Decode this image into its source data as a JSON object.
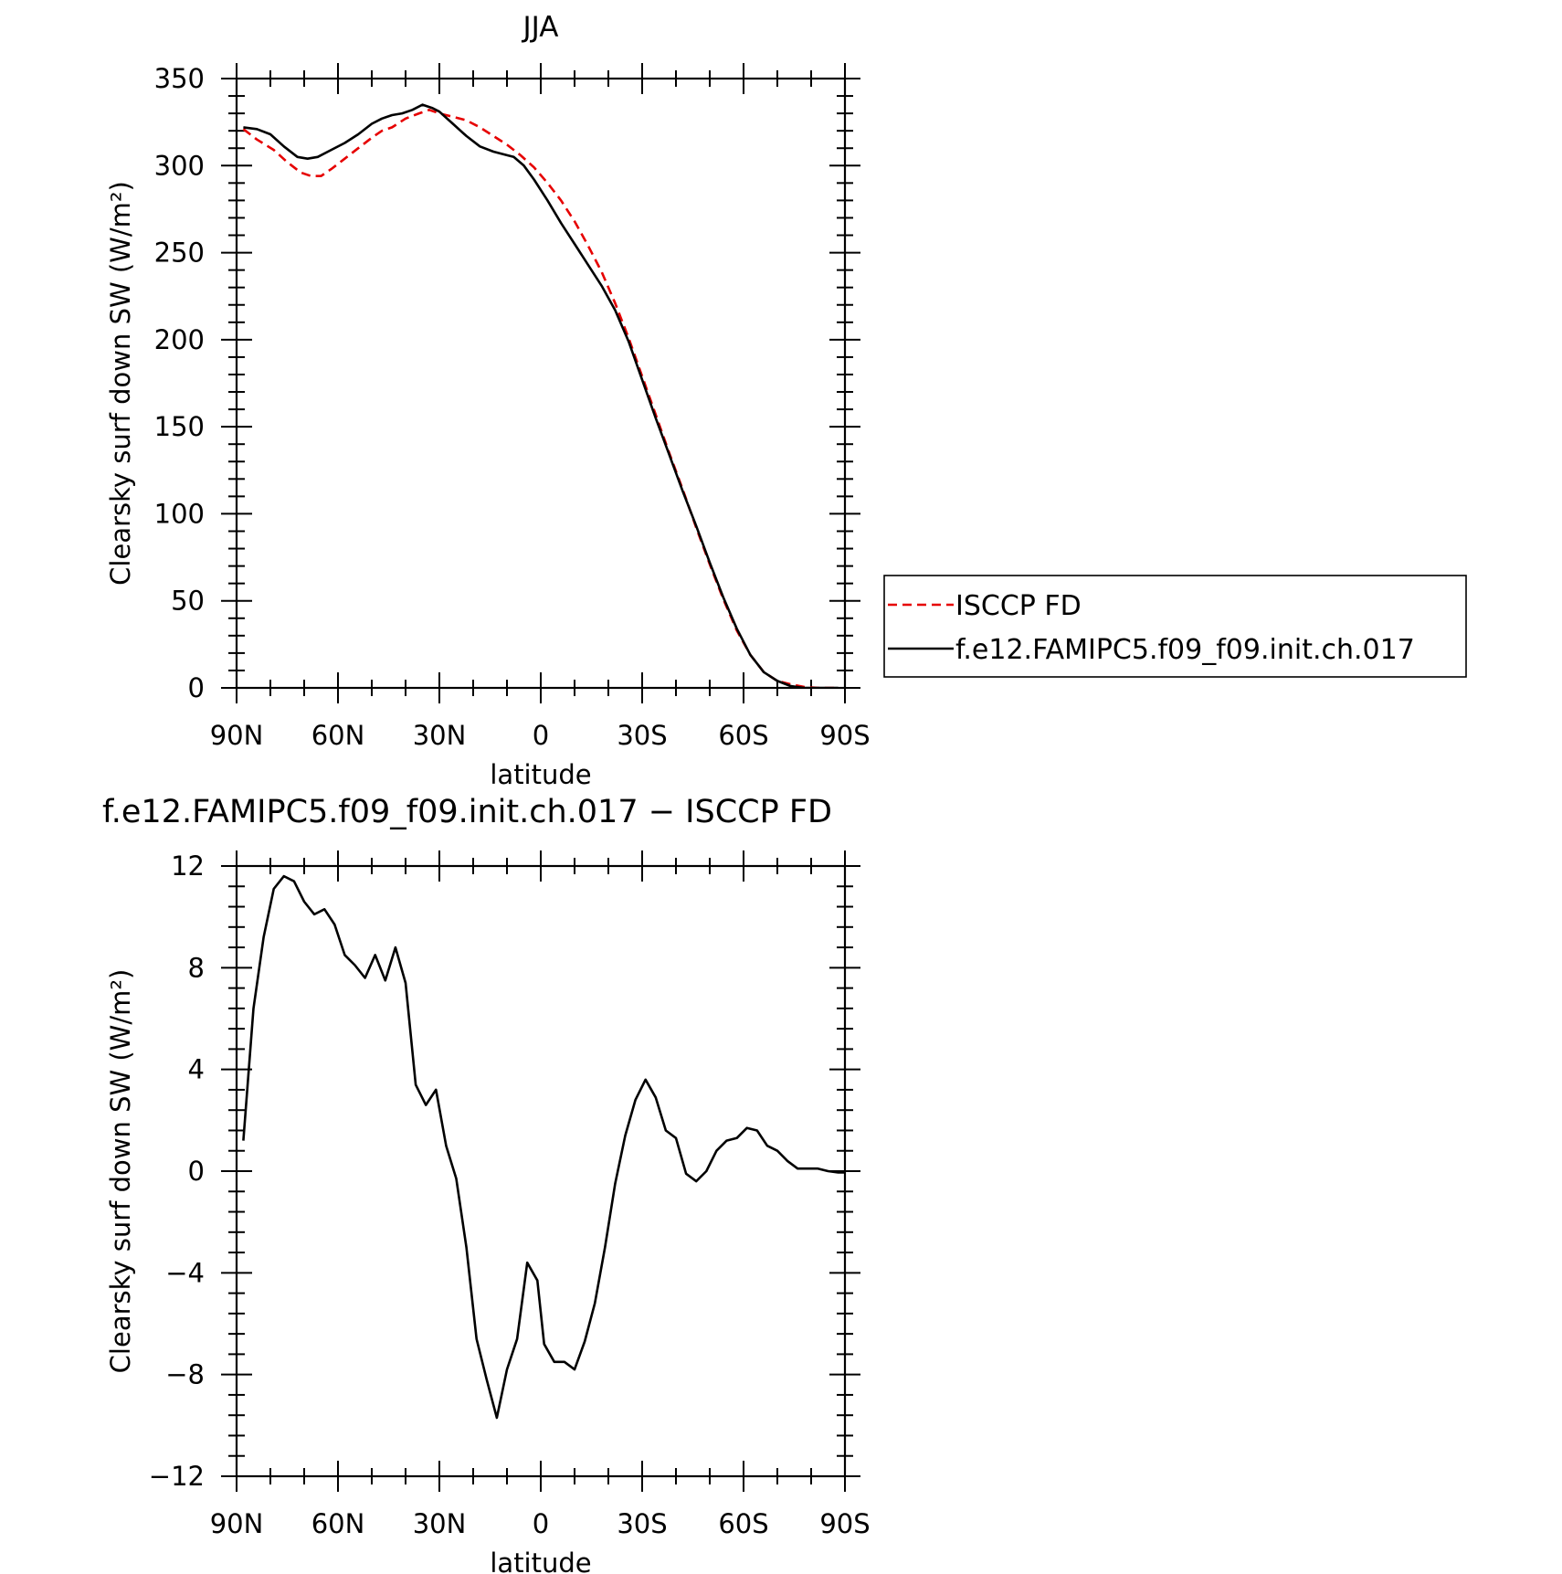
{
  "chart_data": [
    {
      "type": "line",
      "title": "JJA",
      "xlabel": "latitude",
      "ylabel": "Clearsky surf down SW (W/m²)",
      "xlim": [
        90,
        -90
      ],
      "ylim": [
        0,
        350
      ],
      "x_ticks": [
        {
          "value": 90,
          "label": "90N"
        },
        {
          "value": 60,
          "label": "60N"
        },
        {
          "value": 30,
          "label": "30N"
        },
        {
          "value": 0,
          "label": "0"
        },
        {
          "value": -30,
          "label": "30S"
        },
        {
          "value": -60,
          "label": "60S"
        },
        {
          "value": -90,
          "label": "90S"
        }
      ],
      "y_ticks": [
        {
          "value": 0,
          "label": "0"
        },
        {
          "value": 50,
          "label": "50"
        },
        {
          "value": 100,
          "label": "100"
        },
        {
          "value": 150,
          "label": "150"
        },
        {
          "value": 200,
          "label": "200"
        },
        {
          "value": 250,
          "label": "250"
        },
        {
          "value": 300,
          "label": "300"
        },
        {
          "value": 350,
          "label": "350"
        }
      ],
      "legend_position": "right",
      "series": [
        {
          "name": "ISCCP FD",
          "color": "#e60000",
          "dash": "dashed",
          "points": [
            [
              88,
              321
            ],
            [
              84,
              315
            ],
            [
              79,
              309
            ],
            [
              75,
              302
            ],
            [
              71,
              296
            ],
            [
              68,
              294
            ],
            [
              65,
              294
            ],
            [
              62,
              298
            ],
            [
              58,
              304
            ],
            [
              54,
              310
            ],
            [
              50,
              316
            ],
            [
              47,
              320
            ],
            [
              44,
              322
            ],
            [
              40,
              327
            ],
            [
              36,
              330
            ],
            [
              33,
              332
            ],
            [
              30,
              330
            ],
            [
              26,
              328
            ],
            [
              22,
              326
            ],
            [
              18,
              322
            ],
            [
              14,
              317
            ],
            [
              10,
              312
            ],
            [
              6,
              306
            ],
            [
              2,
              299
            ],
            [
              -2,
              290
            ],
            [
              -6,
              280
            ],
            [
              -10,
              268
            ],
            [
              -14,
              254
            ],
            [
              -18,
              239
            ],
            [
              -22,
              221
            ],
            [
              -26,
              201
            ],
            [
              -30,
              179
            ],
            [
              -34,
              157
            ],
            [
              -38,
              135
            ],
            [
              -42,
              114
            ],
            [
              -46,
              92
            ],
            [
              -50,
              71
            ],
            [
              -54,
              51
            ],
            [
              -58,
              33
            ],
            [
              -62,
              19
            ],
            [
              -66,
              9
            ],
            [
              -70,
              4
            ],
            [
              -74,
              2
            ],
            [
              -78,
              0.5
            ],
            [
              -82,
              0
            ],
            [
              -86,
              0
            ],
            [
              -88,
              0
            ]
          ]
        },
        {
          "name": "f.e12.FAMIPC5.f09_f09.init.ch.017",
          "color": "#000000",
          "dash": "solid",
          "points": [
            [
              88,
              322
            ],
            [
              84,
              321
            ],
            [
              80,
              318
            ],
            [
              76,
              311
            ],
            [
              72,
              305
            ],
            [
              69,
              304
            ],
            [
              66,
              305
            ],
            [
              62,
              309
            ],
            [
              58,
              313
            ],
            [
              54,
              318
            ],
            [
              50,
              324
            ],
            [
              47,
              327
            ],
            [
              44,
              329
            ],
            [
              41,
              330
            ],
            [
              38,
              332
            ],
            [
              35,
              335
            ],
            [
              32,
              333
            ],
            [
              30,
              331
            ],
            [
              26,
              324
            ],
            [
              22,
              317
            ],
            [
              18,
              311
            ],
            [
              14,
              308
            ],
            [
              10,
              306
            ],
            [
              8,
              305
            ],
            [
              5,
              300
            ],
            [
              2,
              292
            ],
            [
              -2,
              280
            ],
            [
              -6,
              267
            ],
            [
              -10,
              255
            ],
            [
              -14,
              243
            ],
            [
              -18,
              231
            ],
            [
              -22,
              217
            ],
            [
              -26,
              199
            ],
            [
              -30,
              177
            ],
            [
              -34,
              155
            ],
            [
              -38,
              134
            ],
            [
              -42,
              113
            ],
            [
              -46,
              93
            ],
            [
              -50,
              72
            ],
            [
              -54,
              52
            ],
            [
              -58,
              34
            ],
            [
              -62,
              19
            ],
            [
              -66,
              9
            ],
            [
              -70,
              4
            ],
            [
              -74,
              1
            ],
            [
              -78,
              0
            ],
            [
              -82,
              0
            ],
            [
              -86,
              0
            ],
            [
              -88,
              0
            ]
          ]
        }
      ]
    },
    {
      "type": "line",
      "title": "f.e12.FAMIPC5.f09_f09.init.ch.017 − ISCCP FD",
      "xlabel": "latitude",
      "ylabel": "Clearsky surf down SW (W/m²)",
      "xlim": [
        90,
        -90
      ],
      "ylim": [
        -12,
        12
      ],
      "x_ticks": [
        {
          "value": 90,
          "label": "90N"
        },
        {
          "value": 60,
          "label": "60N"
        },
        {
          "value": 30,
          "label": "30N"
        },
        {
          "value": 0,
          "label": "0"
        },
        {
          "value": -30,
          "label": "30S"
        },
        {
          "value": -60,
          "label": "60S"
        },
        {
          "value": -90,
          "label": "90S"
        }
      ],
      "y_ticks": [
        {
          "value": -12,
          "label": "−12"
        },
        {
          "value": -8,
          "label": "−8"
        },
        {
          "value": -4,
          "label": "−4"
        },
        {
          "value": 0,
          "label": "0"
        },
        {
          "value": 4,
          "label": "4"
        },
        {
          "value": 8,
          "label": "8"
        },
        {
          "value": 12,
          "label": "12"
        }
      ],
      "series": [
        {
          "color": "#000000",
          "dash": "solid",
          "points": [
            [
              88,
              1.2
            ],
            [
              85,
              6.4
            ],
            [
              82,
              9.2
            ],
            [
              79,
              11.1
            ],
            [
              76,
              11.6
            ],
            [
              73,
              11.4
            ],
            [
              70,
              10.6
            ],
            [
              67,
              10.1
            ],
            [
              64,
              10.3
            ],
            [
              61,
              9.7
            ],
            [
              58,
              8.5
            ],
            [
              55,
              8.1
            ],
            [
              52,
              7.6
            ],
            [
              49,
              8.5
            ],
            [
              46,
              7.5
            ],
            [
              43,
              8.8
            ],
            [
              40,
              7.4
            ],
            [
              37,
              3.4
            ],
            [
              34,
              2.6
            ],
            [
              31,
              3.2
            ],
            [
              28,
              1.0
            ],
            [
              25,
              -0.3
            ],
            [
              22,
              -3.0
            ],
            [
              19,
              -6.6
            ],
            [
              16,
              -8.2
            ],
            [
              13,
              -9.7
            ],
            [
              10,
              -7.8
            ],
            [
              7,
              -6.6
            ],
            [
              4,
              -3.6
            ],
            [
              1,
              -4.3
            ],
            [
              -1,
              -6.8
            ],
            [
              -4,
              -7.5
            ],
            [
              -7,
              -7.5
            ],
            [
              -10,
              -7.8
            ],
            [
              -13,
              -6.7
            ],
            [
              -16,
              -5.2
            ],
            [
              -19,
              -3.0
            ],
            [
              -22,
              -0.5
            ],
            [
              -25,
              1.4
            ],
            [
              -28,
              2.8
            ],
            [
              -31,
              3.6
            ],
            [
              -34,
              2.9
            ],
            [
              -37,
              1.6
            ],
            [
              -40,
              1.3
            ],
            [
              -43,
              -0.1
            ],
            [
              -46,
              -0.4
            ],
            [
              -49,
              0.0
            ],
            [
              -52,
              0.8
            ],
            [
              -55,
              1.2
            ],
            [
              -58,
              1.3
            ],
            [
              -61,
              1.7
            ],
            [
              -64,
              1.6
            ],
            [
              -67,
              1.0
            ],
            [
              -70,
              0.8
            ],
            [
              -73,
              0.4
            ],
            [
              -76,
              0.1
            ],
            [
              -79,
              0.1
            ],
            [
              -82,
              0.1
            ],
            [
              -85,
              0.0
            ],
            [
              -88,
              -0.05
            ],
            [
              -91,
              -0.05
            ],
            [
              -94,
              0.0
            ],
            [
              -97,
              0.0
            ],
            [
              -100,
              0.0
            ]
          ]
        }
      ]
    }
  ]
}
